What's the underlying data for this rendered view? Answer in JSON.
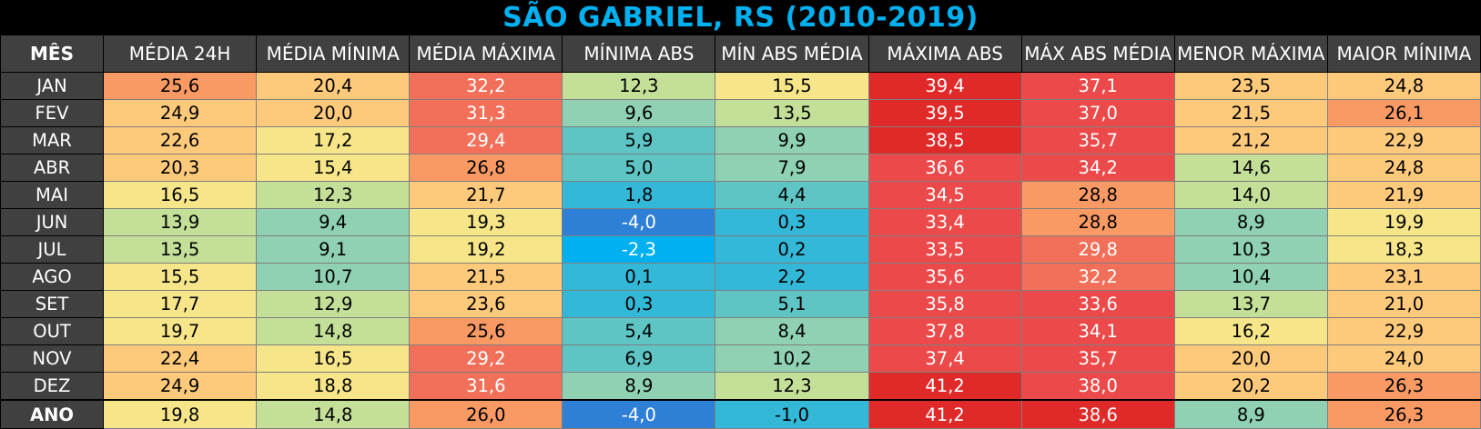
{
  "title": "SÃO GABRIEL, RS (2010-2019)",
  "chart_data": {
    "type": "table",
    "title": "SÃO GABRIEL, RS (2010-2019)",
    "columns": [
      "MÊS",
      "MÉDIA 24H",
      "MÉDIA MÍNIMA",
      "MÉDIA MÁXIMA",
      "MÍNIMA ABS",
      "MÍN ABS MÉDIA",
      "MÁXIMA ABS",
      "MÁX ABS MÉDIA",
      "MENOR MÁXIMA",
      "MAIOR MÍNIMA"
    ],
    "rows": [
      {
        "label": "JAN",
        "values": [
          "25,6",
          "20,4",
          "32,2",
          "12,3",
          "15,5",
          "39,4",
          "37,1",
          "23,5",
          "24,8"
        ]
      },
      {
        "label": "FEV",
        "values": [
          "24,9",
          "20,0",
          "31,3",
          "9,6",
          "13,5",
          "39,5",
          "37,0",
          "21,5",
          "26,1"
        ]
      },
      {
        "label": "MAR",
        "values": [
          "22,6",
          "17,2",
          "29,4",
          "5,9",
          "9,9",
          "38,5",
          "35,7",
          "21,2",
          "22,9"
        ]
      },
      {
        "label": "ABR",
        "values": [
          "20,3",
          "15,4",
          "26,8",
          "5,0",
          "7,9",
          "36,6",
          "34,2",
          "14,6",
          "24,8"
        ]
      },
      {
        "label": "MAI",
        "values": [
          "16,5",
          "12,3",
          "21,7",
          "1,8",
          "4,4",
          "34,5",
          "28,8",
          "14,0",
          "21,9"
        ]
      },
      {
        "label": "JUN",
        "values": [
          "13,9",
          "9,4",
          "19,3",
          "-4,0",
          "0,3",
          "33,4",
          "28,8",
          "8,9",
          "19,9"
        ]
      },
      {
        "label": "JUL",
        "values": [
          "13,5",
          "9,1",
          "19,2",
          "-2,3",
          "0,2",
          "33,5",
          "29,8",
          "10,3",
          "18,3"
        ]
      },
      {
        "label": "AGO",
        "values": [
          "15,5",
          "10,7",
          "21,5",
          "0,1",
          "2,2",
          "35,6",
          "32,2",
          "10,4",
          "23,1"
        ]
      },
      {
        "label": "SET",
        "values": [
          "17,7",
          "12,9",
          "23,6",
          "0,3",
          "5,1",
          "35,8",
          "33,6",
          "13,7",
          "21,0"
        ]
      },
      {
        "label": "OUT",
        "values": [
          "19,7",
          "14,8",
          "25,6",
          "5,4",
          "8,4",
          "37,8",
          "34,1",
          "16,2",
          "22,9"
        ]
      },
      {
        "label": "NOV",
        "values": [
          "22,4",
          "16,5",
          "29,2",
          "6,9",
          "10,2",
          "37,4",
          "35,7",
          "20,0",
          "24,0"
        ]
      },
      {
        "label": "DEZ",
        "values": [
          "24,9",
          "18,8",
          "31,6",
          "8,9",
          "12,3",
          "41,2",
          "38,0",
          "20,2",
          "26,3"
        ]
      },
      {
        "label": "ANO",
        "values": [
          "19,8",
          "14,8",
          "26,0",
          "-4,0",
          "-1,0",
          "41,2",
          "38,6",
          "8,9",
          "26,3"
        ]
      }
    ],
    "colors": {
      "header_bg": "#404040",
      "title_color": "#00b0f0",
      "scale": [
        "#2e7fd6",
        "#00b0f0",
        "#34b8d8",
        "#5ec4c4",
        "#8fd1b2",
        "#c3df98",
        "#f6e689",
        "#fdc97b",
        "#f99a64",
        "#f2705a",
        "#ec4a4a",
        "#e02a2a"
      ]
    }
  }
}
